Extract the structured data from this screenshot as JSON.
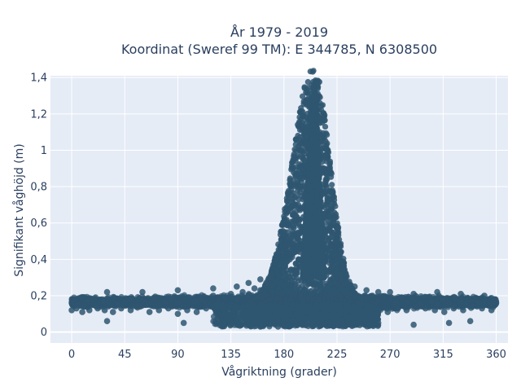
{
  "chart_data": {
    "type": "scatter",
    "title": "År 1979 - 2019",
    "subtitle": "Koordinat (Sweref 99 TM): E 344785, N 6308500",
    "xlabel": "Vågriktning (grader)",
    "ylabel": "Signifikant våghöjd (m)",
    "xlim": [
      -18,
      370
    ],
    "ylim": [
      -0.06,
      1.41
    ],
    "xticks": [
      0,
      45,
      90,
      135,
      180,
      225,
      270,
      315,
      360
    ],
    "xtick_labels": [
      "0",
      "45",
      "90",
      "135",
      "180",
      "225",
      "270",
      "315",
      "360"
    ],
    "yticks": [
      0,
      0.2,
      0.4,
      0.6,
      0.8,
      1.0,
      1.2,
      1.4
    ],
    "ytick_labels": [
      "0",
      "0,2",
      "0,4",
      "0,6",
      "0,8",
      "1",
      "1,2",
      "1,4"
    ],
    "grid": true,
    "colors": {
      "marker": "#2f5670",
      "plot_bg": "#e5ecf6",
      "grid": "#ffffff",
      "text": "#2a3f5f"
    },
    "points_x": [
      0,
      2,
      5,
      8,
      10,
      14,
      18,
      22,
      27,
      31,
      36,
      40,
      45,
      50,
      55,
      60,
      65,
      70,
      75,
      80,
      85,
      90,
      95,
      100,
      105,
      110,
      115,
      120,
      125,
      130,
      135,
      140,
      145,
      150,
      155,
      160,
      165,
      170,
      174,
      178,
      182,
      186,
      188,
      190,
      192,
      194,
      196,
      197,
      198,
      199,
      200,
      201,
      202,
      203,
      204,
      205,
      206,
      207,
      208,
      209,
      210,
      211,
      212,
      213,
      214,
      215,
      216,
      218,
      220,
      222,
      225,
      228,
      232,
      236,
      240,
      245,
      250,
      255,
      260,
      265,
      270,
      275,
      280,
      285,
      290,
      295,
      300,
      305,
      310,
      315,
      320,
      325,
      330,
      335,
      340,
      345,
      350,
      355,
      358,
      360,
      0,
      4,
      9,
      15,
      21,
      28,
      35,
      42,
      50,
      58,
      66,
      74,
      82,
      90,
      98,
      106,
      114,
      122,
      130,
      138,
      146,
      154,
      162,
      170,
      178,
      186,
      193,
      200,
      207,
      214,
      221,
      228,
      236,
      244,
      252,
      260,
      268,
      276,
      284,
      292,
      300,
      308,
      316,
      324,
      332,
      340,
      348,
      356,
      30,
      60,
      90,
      120,
      140,
      150,
      160,
      170,
      180,
      185,
      190,
      195,
      198,
      200,
      202,
      204,
      206,
      208,
      210,
      212,
      215,
      220,
      225,
      232,
      240,
      250,
      260,
      270,
      290,
      310,
      330,
      350,
      140,
      150,
      160,
      168,
      175,
      180,
      185,
      190,
      194,
      197,
      200,
      202,
      204,
      206,
      208,
      210,
      212,
      214,
      216,
      218,
      220,
      224,
      228,
      235,
      245,
      185,
      190,
      193,
      196,
      198,
      200,
      201,
      202,
      203,
      204,
      205,
      206,
      207,
      208,
      209,
      210,
      211,
      212,
      213,
      195,
      198,
      200,
      202,
      203,
      204,
      205,
      206,
      207,
      208,
      209,
      210,
      211,
      201,
      203,
      205,
      207,
      209,
      30,
      95,
      150,
      160,
      175,
      210,
      230,
      240,
      260,
      290,
      320,
      338
    ],
    "points_y": [
      0.16,
      0.18,
      0.15,
      0.19,
      0.14,
      0.17,
      0.18,
      0.13,
      0.17,
      0.16,
      0.19,
      0.15,
      0.16,
      0.18,
      0.14,
      0.17,
      0.16,
      0.19,
      0.15,
      0.17,
      0.18,
      0.16,
      0.14,
      0.19,
      0.17,
      0.18,
      0.16,
      0.2,
      0.17,
      0.19,
      0.21,
      0.18,
      0.22,
      0.2,
      0.24,
      0.23,
      0.27,
      0.3,
      0.34,
      0.38,
      0.44,
      0.52,
      0.58,
      0.64,
      0.7,
      0.8,
      0.9,
      0.98,
      1.05,
      1.12,
      1.2,
      1.25,
      1.28,
      1.31,
      1.33,
      1.34,
      1.33,
      1.3,
      1.25,
      1.18,
      1.1,
      1.0,
      0.88,
      0.76,
      0.65,
      0.55,
      0.47,
      0.4,
      0.34,
      0.3,
      0.26,
      0.24,
      0.22,
      0.21,
      0.2,
      0.19,
      0.18,
      0.2,
      0.17,
      0.19,
      0.18,
      0.16,
      0.19,
      0.17,
      0.18,
      0.16,
      0.19,
      0.17,
      0.15,
      0.18,
      0.16,
      0.19,
      0.17,
      0.15,
      0.18,
      0.16,
      0.17,
      0.15,
      0.18,
      0.16,
      0.12,
      0.13,
      0.11,
      0.12,
      0.14,
      0.12,
      0.11,
      0.13,
      0.12,
      0.14,
      0.11,
      0.12,
      0.13,
      0.1,
      0.12,
      0.11,
      0.13,
      0.12,
      0.1,
      0.09,
      0.08,
      0.07,
      0.06,
      0.05,
      0.05,
      0.06,
      0.07,
      0.05,
      0.06,
      0.08,
      0.09,
      0.1,
      0.11,
      0.12,
      0.13,
      0.12,
      0.11,
      0.13,
      0.12,
      0.14,
      0.13,
      0.12,
      0.11,
      0.13,
      0.12,
      0.14,
      0.13,
      0.12,
      0.22,
      0.22,
      0.23,
      0.24,
      0.25,
      0.27,
      0.29,
      0.32,
      0.36,
      0.4,
      0.46,
      0.55,
      0.62,
      0.7,
      0.78,
      0.85,
      0.8,
      0.72,
      0.6,
      0.5,
      0.42,
      0.35,
      0.3,
      0.27,
      0.25,
      0.23,
      0.22,
      0.22,
      0.21,
      0.22,
      0.21,
      0.2,
      0.08,
      0.06,
      0.05,
      0.05,
      0.06,
      0.08,
      0.1,
      0.12,
      0.2,
      0.3,
      0.45,
      0.6,
      0.75,
      0.95,
      1.1,
      1.15,
      1.05,
      0.9,
      0.7,
      0.5,
      0.35,
      0.22,
      0.12,
      0.08,
      0.06,
      0.5,
      0.6,
      0.68,
      0.8,
      0.92,
      1.02,
      1.1,
      1.16,
      1.2,
      1.24,
      1.27,
      1.22,
      1.17,
      1.1,
      1.0,
      0.9,
      0.78,
      0.62,
      0.48,
      0.4,
      0.56,
      0.7,
      0.86,
      0.96,
      1.06,
      1.14,
      1.2,
      1.24,
      1.16,
      1.04,
      0.9,
      0.72,
      0.3,
      0.32,
      0.28,
      0.34,
      0.3,
      0.06,
      0.05,
      0.04,
      0.03,
      0.03,
      0.04,
      0.04,
      0.05,
      0.05,
      0.04,
      0.05,
      0.06
    ]
  }
}
